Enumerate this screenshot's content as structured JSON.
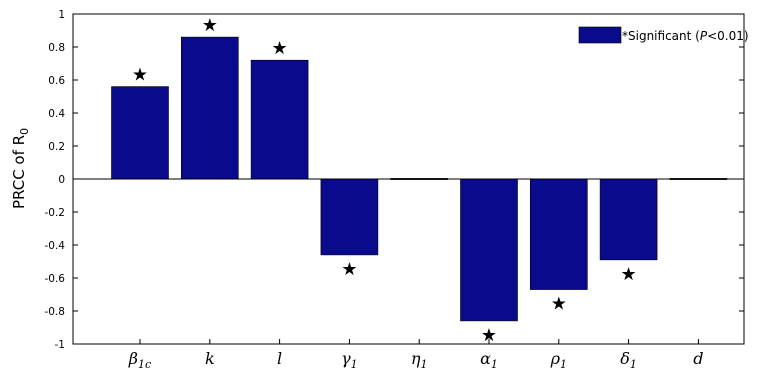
{
  "chart_data": {
    "type": "bar",
    "ylabel": "PRCC of R",
    "ylabel_subscript": "0",
    "ylim": [
      -1,
      1
    ],
    "yticks": [
      "-1",
      "-0.8",
      "-0.6",
      "-0.4",
      "-0.2",
      "0",
      "0.2",
      "0.4",
      "0.6",
      "0.8",
      "1"
    ],
    "categories": [
      {
        "base": "β",
        "sub": "1c"
      },
      {
        "base": "k",
        "sub": ""
      },
      {
        "base": "l",
        "sub": ""
      },
      {
        "base": "γ",
        "sub": "1"
      },
      {
        "base": "η",
        "sub": "1"
      },
      {
        "base": "α",
        "sub": "1"
      },
      {
        "base": "ρ",
        "sub": "1"
      },
      {
        "base": "δ",
        "sub": "1"
      },
      {
        "base": "d",
        "sub": ""
      }
    ],
    "values": [
      0.56,
      0.86,
      0.72,
      -0.46,
      -0.005,
      -0.86,
      -0.67,
      -0.49,
      0.005
    ],
    "significant": [
      true,
      true,
      true,
      true,
      false,
      true,
      true,
      true,
      false
    ],
    "significance_mark": "★",
    "bar_color": "#0a0a8c",
    "legend": {
      "placement": "top-right",
      "prefix": "*Significant (",
      "p_symbol": "P",
      "suffix": "<0.01)"
    }
  }
}
